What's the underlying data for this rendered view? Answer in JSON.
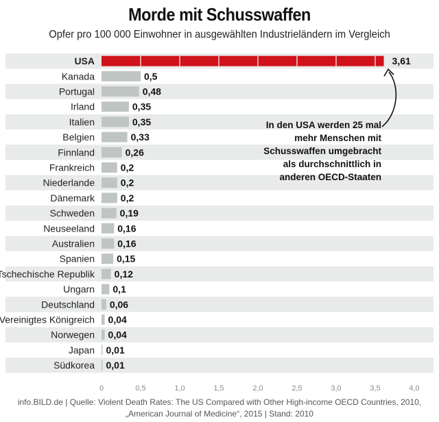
{
  "header": {
    "title": "Morde mit Schusswaffen",
    "subtitle": "Opfer pro 100 000 Einwohner in ausgewählten Industrieländern im Vergleich"
  },
  "annotation": {
    "lines": [
      "In den USA werden 25 mal",
      "mehr Menschen mit",
      "Schusswaffen umgebracht",
      "als durchschnittlich in",
      "anderen OECD-Staaten"
    ]
  },
  "footer": {
    "line1": "info.BILD.de | Quelle: Violent Death Rates: The US Compared with Other High-income OECD Countries, 2010,",
    "line2": "„American Journal of Medicine“, 2015 | Stand: 2010"
  },
  "colors": {
    "highlight": "#d0121b",
    "bar": "#bfc5c3",
    "stripe": "#e9eaea",
    "axis_text": "#8a8a8a"
  },
  "chart_data": {
    "type": "bar",
    "orientation": "horizontal",
    "categories": [
      "USA",
      "Kanada",
      "Portugal",
      "Irland",
      "Italien",
      "Belgien",
      "Finnland",
      "Frankreich",
      "Niederlande",
      "Dänemark",
      "Schweden",
      "Neuseeland",
      "Australien",
      "Spanien",
      "Tschechische Republik",
      "Ungarn",
      "Deutschland",
      "Vereinigtes Königreich",
      "Norwegen",
      "Japan",
      "Südkorea"
    ],
    "values": [
      3.61,
      0.5,
      0.48,
      0.35,
      0.35,
      0.33,
      0.26,
      0.2,
      0.2,
      0.2,
      0.19,
      0.16,
      0.16,
      0.15,
      0.12,
      0.1,
      0.06,
      0.04,
      0.04,
      0.01,
      0.01
    ],
    "value_labels": [
      "3,61",
      "0,5",
      "0,48",
      "0,35",
      "0,35",
      "0,33",
      "0,26",
      "0,2",
      "0,2",
      "0,2",
      "0,19",
      "0,16",
      "0,16",
      "0,15",
      "0,12",
      "0,1",
      "0,06",
      "0,04",
      "0,04",
      "0,01",
      "0,01"
    ],
    "highlight_index": 0,
    "xlim": [
      0,
      4.0
    ],
    "xticks": [
      0,
      0.5,
      1.0,
      1.5,
      2.0,
      2.5,
      3.0,
      3.5,
      4.0
    ],
    "xtick_labels": [
      "0",
      "0,5",
      "1,0",
      "1,5",
      "2,0",
      "2,5",
      "3,0",
      "3,5",
      "4,0"
    ],
    "grid": false
  }
}
